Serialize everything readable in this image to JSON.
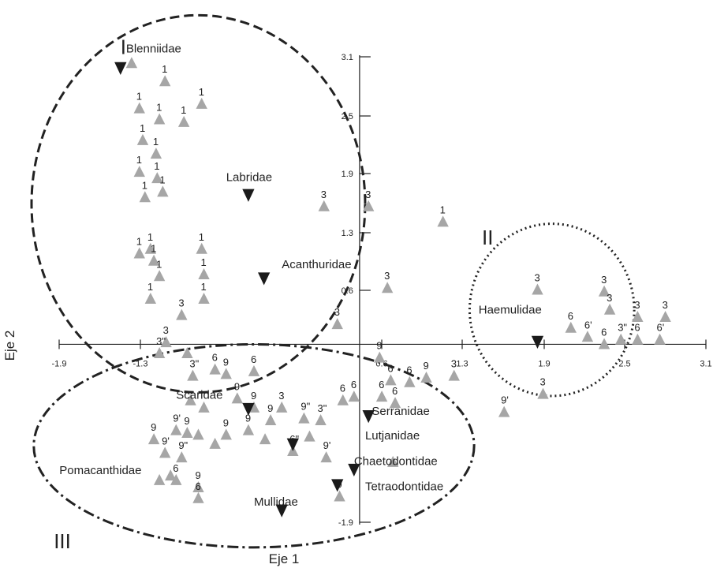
{
  "chart_data": {
    "type": "scatter",
    "xlabel": "Eje 1",
    "ylabel": "Eje 2",
    "xlim": [
      -2.95,
      3.15
    ],
    "ylim": [
      -2.25,
      3.45
    ],
    "x_ticks": [
      "-1.9",
      "-1.3",
      "0.6",
      "1.3",
      "1.9",
      "2.5",
      "3.1"
    ],
    "y_ticks": [
      "3.1",
      "2.5",
      "1.9",
      "1.3",
      "0.6",
      "-1.9"
    ],
    "groups": [
      {
        "label": "I",
        "cx": -1.45,
        "cy": 1.55,
        "rx": 1.5,
        "ry": 2.08,
        "line": "dashed"
      },
      {
        "label": "II",
        "cx": 1.73,
        "cy": 0.38,
        "rx": 0.74,
        "ry": 0.95,
        "line": "dotted"
      },
      {
        "label": "III",
        "cx": -0.95,
        "cy": -1.12,
        "rx": 1.98,
        "ry": 1.12,
        "line": "dash-dot"
      }
    ],
    "group_label_pos": {
      "I": [
        -2.15,
        3.2
      ],
      "II": [
        1.1,
        1.1
      ],
      "III": [
        -2.75,
        -2.25
      ]
    },
    "families": [
      {
        "name": "Blenniidae",
        "x": -2.15,
        "y": 3.05
      },
      {
        "name": "Labridae",
        "x": -1.0,
        "y": 1.65
      },
      {
        "name": "Acanthuridae",
        "x": -0.86,
        "y": 0.73
      },
      {
        "name": "Haemulidae",
        "x": 1.6,
        "y": 0.03
      },
      {
        "name": "Scaridae",
        "x": -1.0,
        "y": -0.71
      },
      {
        "name": "Serranidae",
        "x": 0.08,
        "y": -0.79
      },
      {
        "name": "Lutjanidae",
        "x": -0.6,
        "y": -1.1
      },
      {
        "name": "Chaetodontidae",
        "x": -0.05,
        "y": -1.38
      },
      {
        "name": "Tetraodontidae",
        "x": -0.2,
        "y": -1.55
      },
      {
        "name": "Mullidae",
        "x": -0.7,
        "y": -1.83
      }
    ],
    "family_label_pos": {
      "Blenniidae": [
        -2.1,
        3.22
      ],
      "Labridae": [
        -1.2,
        1.8
      ],
      "Acanthuridae": [
        -0.7,
        0.84
      ],
      "Haemulidae": [
        1.07,
        0.34
      ],
      "Scaridae": [
        -1.65,
        -0.6
      ],
      "Serranidae": [
        0.11,
        -0.78
      ],
      "Lutjanidae": [
        0.05,
        -1.05
      ],
      "Chaetodontidae": [
        -0.05,
        -1.33
      ],
      "Tetraodontidae": [
        0.05,
        -1.61
      ],
      "Pomacanthidae": [
        -2.7,
        -1.43
      ],
      "Mullidae": [
        -0.95,
        -1.78
      ]
    },
    "points": [
      {
        "x": -2.05,
        "y": 3.1,
        "label": ""
      },
      {
        "x": -1.75,
        "y": 2.9,
        "label": "1"
      },
      {
        "x": -1.98,
        "y": 2.6,
        "label": "1"
      },
      {
        "x": -1.8,
        "y": 2.48,
        "label": "1"
      },
      {
        "x": -1.42,
        "y": 2.65,
        "label": "1"
      },
      {
        "x": -1.58,
        "y": 2.45,
        "label": "1"
      },
      {
        "x": -1.95,
        "y": 2.25,
        "label": "1"
      },
      {
        "x": -1.83,
        "y": 2.1,
        "label": "1"
      },
      {
        "x": -1.98,
        "y": 1.9,
        "label": "1"
      },
      {
        "x": -1.82,
        "y": 1.83,
        "label": "1"
      },
      {
        "x": -1.93,
        "y": 1.62,
        "label": "1"
      },
      {
        "x": -1.77,
        "y": 1.68,
        "label": "1"
      },
      {
        "x": -0.32,
        "y": 1.52,
        "label": "3"
      },
      {
        "x": 0.08,
        "y": 1.52,
        "label": "3"
      },
      {
        "x": 0.75,
        "y": 1.35,
        "label": "1"
      },
      {
        "x": -1.98,
        "y": 1.0,
        "label": "1"
      },
      {
        "x": -1.88,
        "y": 1.05,
        "label": "1"
      },
      {
        "x": -1.85,
        "y": 0.92,
        "label": "1"
      },
      {
        "x": -1.8,
        "y": 0.75,
        "label": "1"
      },
      {
        "x": -1.42,
        "y": 1.05,
        "label": "1"
      },
      {
        "x": -1.4,
        "y": 0.77,
        "label": "1"
      },
      {
        "x": -1.4,
        "y": 0.5,
        "label": "1"
      },
      {
        "x": -1.88,
        "y": 0.5,
        "label": "1"
      },
      {
        "x": -1.6,
        "y": 0.32,
        "label": "3"
      },
      {
        "x": 0.25,
        "y": 0.62,
        "label": "3"
      },
      {
        "x": -0.2,
        "y": 0.22,
        "label": "3"
      },
      {
        "x": -1.74,
        "y": 0.02,
        "label": "3"
      },
      {
        "x": -1.8,
        "y": -0.1,
        "label": "3\""
      },
      {
        "x": -1.55,
        "y": -0.1,
        "label": ""
      },
      {
        "x": -1.5,
        "y": -0.35,
        "label": "3\""
      },
      {
        "x": -1.3,
        "y": -0.28,
        "label": "6"
      },
      {
        "x": -1.2,
        "y": -0.33,
        "label": "9"
      },
      {
        "x": -0.95,
        "y": -0.3,
        "label": "6"
      },
      {
        "x": 0.18,
        "y": -0.15,
        "label": "9"
      },
      {
        "x": 0.28,
        "y": -0.4,
        "label": "6"
      },
      {
        "x": 0.45,
        "y": -0.42,
        "label": "6"
      },
      {
        "x": 0.6,
        "y": -0.37,
        "label": "9"
      },
      {
        "x": 0.85,
        "y": -0.35,
        "label": "3"
      },
      {
        "x": 0.2,
        "y": -0.58,
        "label": "6"
      },
      {
        "x": 0.32,
        "y": -0.65,
        "label": "6"
      },
      {
        "x": 1.3,
        "y": -0.75,
        "label": "9'"
      },
      {
        "x": -0.05,
        "y": -0.58,
        "label": "6"
      },
      {
        "x": -0.15,
        "y": -0.62,
        "label": "6"
      },
      {
        "x": -1.52,
        "y": -0.62,
        "label": ""
      },
      {
        "x": -1.4,
        "y": -0.7,
        "label": ""
      },
      {
        "x": -1.1,
        "y": -0.6,
        "label": "9"
      },
      {
        "x": -0.95,
        "y": -0.7,
        "label": "9"
      },
      {
        "x": -0.8,
        "y": -0.84,
        "label": "9"
      },
      {
        "x": -0.7,
        "y": -0.7,
        "label": "3"
      },
      {
        "x": -0.5,
        "y": -0.82,
        "label": "9\""
      },
      {
        "x": -0.35,
        "y": -0.84,
        "label": "3\""
      },
      {
        "x": -1.65,
        "y": -0.95,
        "label": "9'"
      },
      {
        "x": -1.55,
        "y": -0.98,
        "label": "9"
      },
      {
        "x": -1.45,
        "y": -1.0,
        "label": ""
      },
      {
        "x": -1.85,
        "y": -1.05,
        "label": "9"
      },
      {
        "x": -1.2,
        "y": -1.0,
        "label": "9"
      },
      {
        "x": -1.0,
        "y": -0.95,
        "label": "9"
      },
      {
        "x": -0.85,
        "y": -1.05,
        "label": ""
      },
      {
        "x": -0.45,
        "y": -1.02,
        "label": ""
      },
      {
        "x": -1.75,
        "y": -1.2,
        "label": "9'"
      },
      {
        "x": -1.6,
        "y": -1.25,
        "label": "9\""
      },
      {
        "x": -1.3,
        "y": -1.1,
        "label": ""
      },
      {
        "x": -0.6,
        "y": -1.18,
        "label": "6\""
      },
      {
        "x": -0.3,
        "y": -1.25,
        "label": "9'"
      },
      {
        "x": -1.8,
        "y": -1.5,
        "label": ""
      },
      {
        "x": -1.7,
        "y": -1.45,
        "label": ""
      },
      {
        "x": -1.65,
        "y": -1.5,
        "label": "6"
      },
      {
        "x": -1.45,
        "y": -1.58,
        "label": "9"
      },
      {
        "x": -1.45,
        "y": -1.7,
        "label": "6"
      },
      {
        "x": -0.18,
        "y": -1.68,
        "label": "9"
      },
      {
        "x": 0.3,
        "y": -1.3,
        "label": ""
      },
      {
        "x": 1.6,
        "y": 0.6,
        "label": "3"
      },
      {
        "x": 2.2,
        "y": 0.58,
        "label": "3"
      },
      {
        "x": 2.25,
        "y": 0.38,
        "label": "3"
      },
      {
        "x": 2.5,
        "y": 0.3,
        "label": "3"
      },
      {
        "x": 2.75,
        "y": 0.3,
        "label": "3"
      },
      {
        "x": 1.9,
        "y": 0.18,
        "label": "6"
      },
      {
        "x": 2.05,
        "y": 0.08,
        "label": "6'"
      },
      {
        "x": 2.2,
        "y": 0.0,
        "label": "6"
      },
      {
        "x": 2.35,
        "y": 0.05,
        "label": "3\""
      },
      {
        "x": 2.5,
        "y": 0.05,
        "label": "6"
      },
      {
        "x": 2.7,
        "y": 0.05,
        "label": "6'"
      },
      {
        "x": 1.65,
        "y": -0.55,
        "label": "3"
      }
    ]
  }
}
